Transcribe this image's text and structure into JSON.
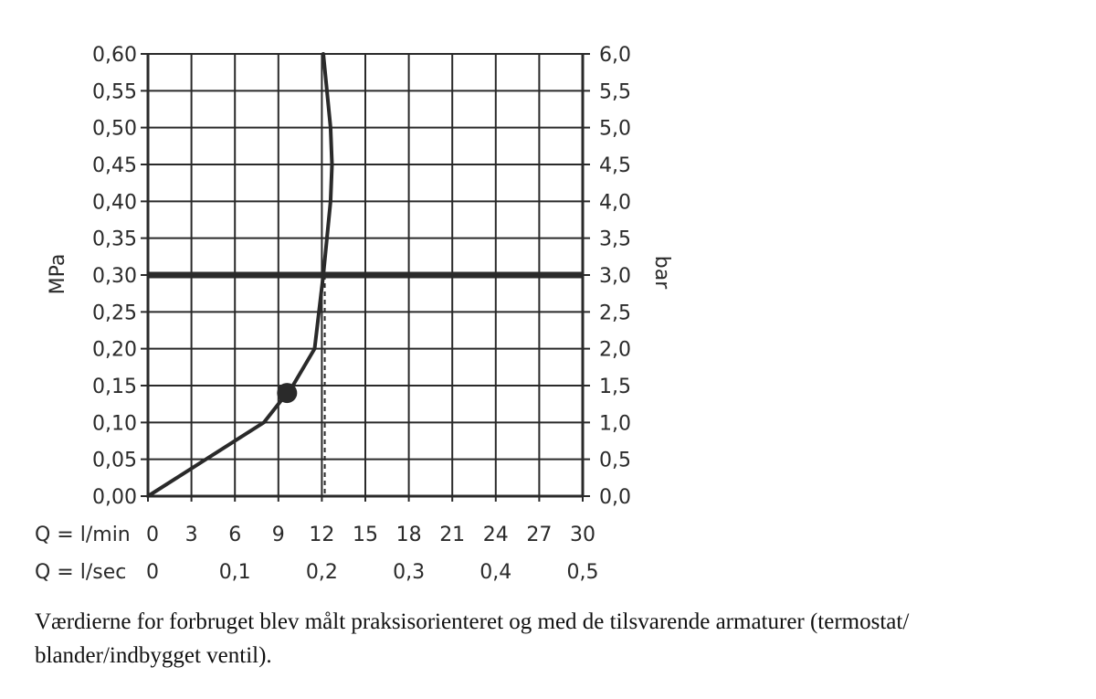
{
  "chart_data": {
    "type": "line",
    "left_axis": {
      "label": "MPa",
      "ticks": [
        "0,00",
        "0,05",
        "0,10",
        "0,15",
        "0,20",
        "0,25",
        "0,30",
        "0,35",
        "0,40",
        "0,45",
        "0,50",
        "0,55",
        "0,60"
      ],
      "range": [
        0,
        0.6
      ]
    },
    "right_axis": {
      "label": "bar",
      "ticks": [
        "0,0",
        "0,5",
        "1,0",
        "1,5",
        "2,0",
        "2,5",
        "3,0",
        "3,5",
        "4,0",
        "4,5",
        "5,0",
        "5,5",
        "6,0"
      ],
      "range": [
        0,
        6
      ]
    },
    "x_axis_lmin": {
      "label": "Q = l/min",
      "ticks": [
        "0",
        "3",
        "6",
        "9",
        "12",
        "15",
        "18",
        "21",
        "24",
        "27",
        "30"
      ],
      "range": [
        0,
        30
      ]
    },
    "x_axis_lsec": {
      "label": "Q = l/sec",
      "ticks": [
        {
          "label": "0",
          "value": 0
        },
        {
          "label": "0,1",
          "value": 0.1
        },
        {
          "label": "0,2",
          "value": 0.2
        },
        {
          "label": "0,3",
          "value": 0.3
        },
        {
          "label": "0,4",
          "value": 0.4
        },
        {
          "label": "0,5",
          "value": 0.5
        }
      ]
    },
    "grid": true,
    "series": [
      {
        "x": [
          0,
          8,
          10,
          11.5,
          12.1,
          12.6,
          12.7,
          12.6,
          12.1
        ],
        "y": [
          0,
          0.1,
          0.15,
          0.2,
          0.3,
          0.4,
          0.45,
          0.5,
          0.6
        ]
      }
    ],
    "marker": {
      "x": 9.6,
      "y": 0.14
    },
    "reference_line": {
      "y": 0.3
    },
    "reference_drop": {
      "x": 12.2,
      "y": 0.3
    },
    "colors": {
      "line": "#2a2a2a",
      "grid": "#2a2a2a"
    }
  },
  "caption": "Værdierne for forbruget blev målt praksisorienteret og med de tilsvarende armaturer (termostat/ blander/indbygget ventil)."
}
